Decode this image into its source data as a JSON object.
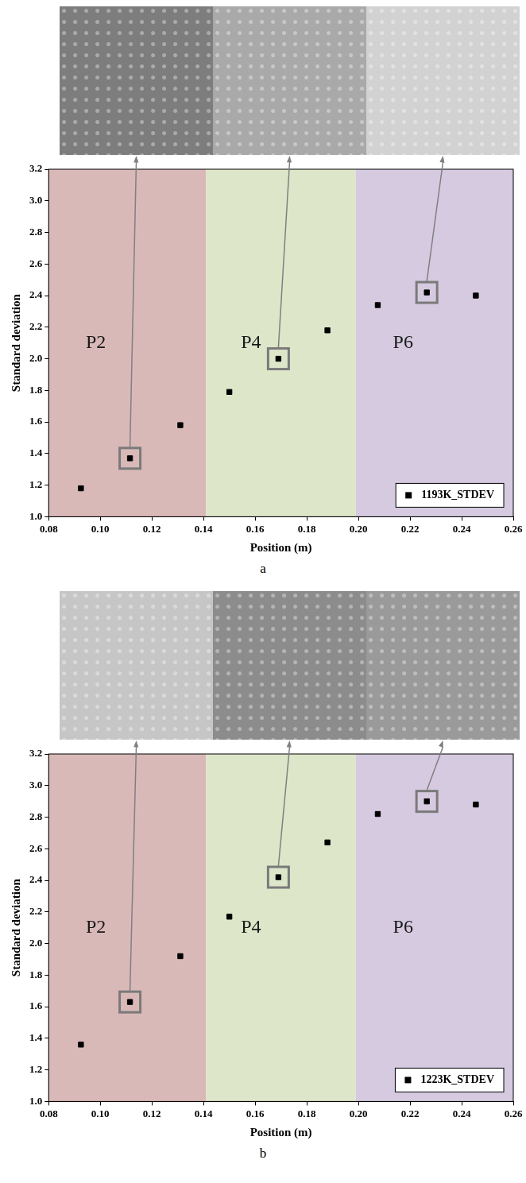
{
  "chart_data": [
    {
      "type": "scatter",
      "caption": "a",
      "x_label": "Position (m)",
      "y_label": "Standard deviation",
      "x": [
        0.0925,
        0.1115,
        0.131,
        0.15,
        0.169,
        0.188,
        0.2075,
        0.2265,
        0.2455
      ],
      "series": [
        {
          "name": "1193K_STDEV",
          "color": "#000000",
          "marker": "square",
          "values": [
            1.18,
            1.37,
            1.58,
            1.79,
            2.0,
            2.18,
            2.34,
            2.42,
            2.4
          ]
        }
      ],
      "xlim": [
        0.08,
        0.26
      ],
      "xticks": [
        0.08,
        {
          "value": 0.1,
          "label": "0.10"
        },
        0.12,
        0.14,
        0.16,
        0.18,
        {
          "value": 0.2,
          "label": "0.20"
        },
        0.22,
        0.24,
        0.26
      ],
      "ylim": [
        1.0,
        3.2
      ],
      "yticks": [
        {
          "value": 1,
          "label": "1.0"
        },
        1.2,
        1.4,
        1.6,
        1.8,
        {
          "value": 2,
          "label": "2.0"
        },
        2.2,
        2.4,
        2.6,
        2.8,
        {
          "value": 3,
          "label": "3.0"
        },
        3.2
      ],
      "grid": false,
      "legend": "lower right",
      "regions": [
        {
          "label": "P2",
          "x0": 0.08,
          "x1": 0.141,
          "color": "#d9b9b8"
        },
        {
          "label": "P4",
          "x0": 0.141,
          "x1": 0.199,
          "color": "#dde6c9"
        },
        {
          "label": "P6",
          "x0": 0.199,
          "x1": 0.26,
          "color": "#d5cae0"
        }
      ],
      "highlighted_x": [
        0.1115,
        0.169,
        0.2265
      ]
    },
    {
      "type": "scatter",
      "caption": "b",
      "x_label": "Position (m)",
      "y_label": "Standard deviation",
      "x": [
        0.0925,
        0.1115,
        0.131,
        0.15,
        0.169,
        0.188,
        0.2075,
        0.2265,
        0.2455
      ],
      "series": [
        {
          "name": "1223K_STDEV",
          "color": "#000000",
          "marker": "square",
          "values": [
            1.36,
            1.63,
            1.92,
            2.17,
            2.42,
            2.64,
            2.82,
            2.9,
            2.88
          ]
        }
      ],
      "xlim": [
        0.08,
        0.26
      ],
      "xticks": [
        0.08,
        {
          "value": 0.1,
          "label": "0.10"
        },
        0.12,
        0.14,
        0.16,
        0.18,
        {
          "value": 0.2,
          "label": "0.20"
        },
        0.22,
        0.24,
        0.26
      ],
      "ylim": [
        1.0,
        3.2
      ],
      "yticks": [
        {
          "value": 1,
          "label": "1.0"
        },
        1.2,
        1.4,
        1.6,
        1.8,
        {
          "value": 2,
          "label": "2.0"
        },
        2.2,
        2.4,
        2.6,
        2.8,
        {
          "value": 3,
          "label": "3.0"
        },
        3.2
      ],
      "grid": false,
      "legend": "lower right",
      "regions": [
        {
          "label": "P2",
          "x0": 0.08,
          "x1": 0.141,
          "color": "#d9b9b8"
        },
        {
          "label": "P4",
          "x0": 0.141,
          "x1": 0.199,
          "color": "#dde6c9"
        },
        {
          "label": "P6",
          "x0": 0.199,
          "x1": 0.26,
          "color": "#d5cae0"
        }
      ],
      "highlighted_x": [
        0.1115,
        0.169,
        0.2265
      ]
    }
  ]
}
